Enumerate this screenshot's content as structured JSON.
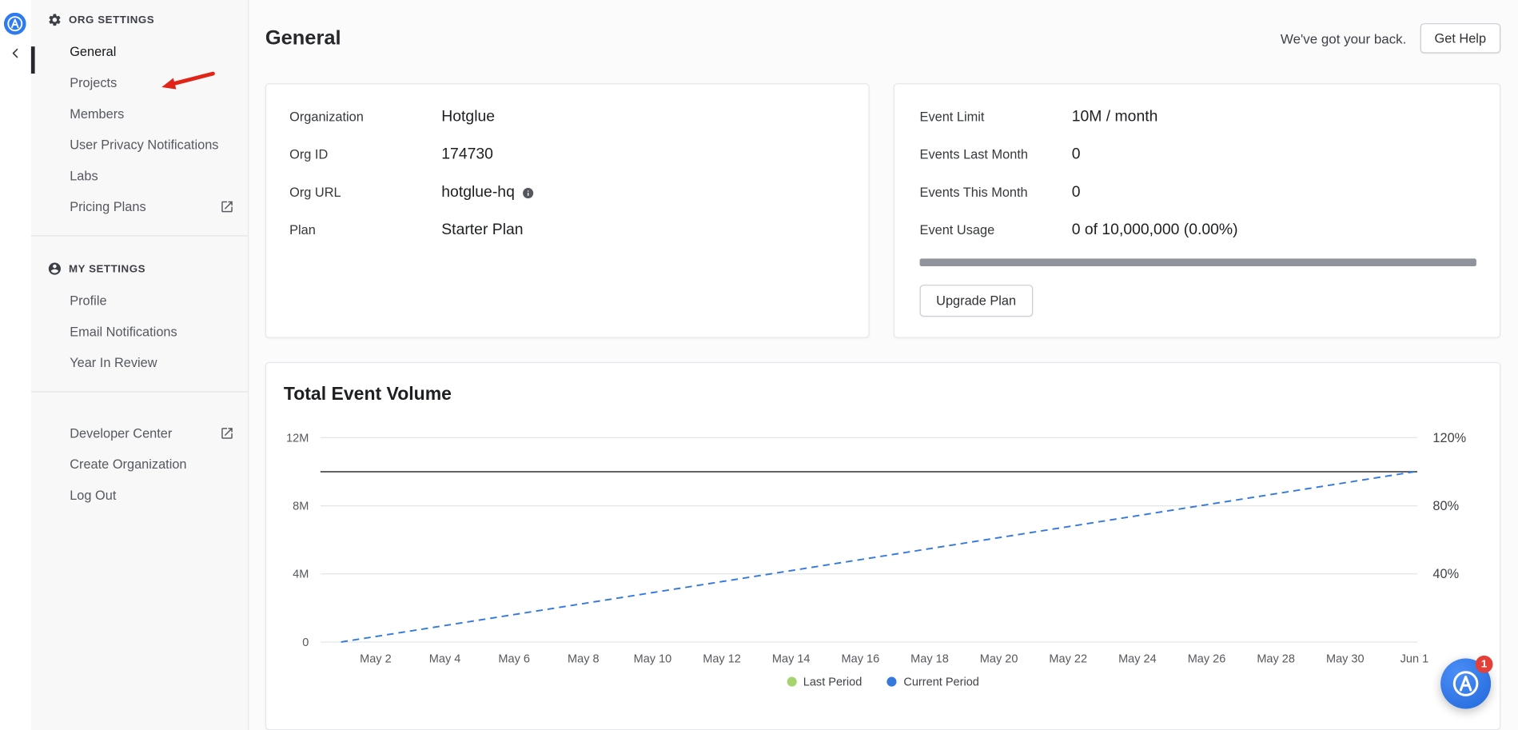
{
  "brand": {
    "accent": "#2e7bf0"
  },
  "sidebar": {
    "org_settings_header": "ORG SETTINGS",
    "org_items": [
      {
        "label": "General",
        "active": true
      },
      {
        "label": "Projects"
      },
      {
        "label": "Members"
      },
      {
        "label": "User Privacy Notifications"
      },
      {
        "label": "Labs"
      },
      {
        "label": "Pricing Plans",
        "external": true
      }
    ],
    "my_settings_header": "MY SETTINGS",
    "my_items": [
      {
        "label": "Profile"
      },
      {
        "label": "Email Notifications"
      },
      {
        "label": "Year In Review"
      }
    ],
    "footer_items": [
      {
        "label": "Developer Center",
        "external": true
      },
      {
        "label": "Create Organization"
      },
      {
        "label": "Log Out"
      }
    ]
  },
  "annotation": {
    "color": "#e02417",
    "points_to": "Projects"
  },
  "header": {
    "support_text": "We've got your back.",
    "get_help_label": "Get Help"
  },
  "page_title": "General",
  "org_card": {
    "rows": [
      {
        "label": "Organization",
        "value": "Hotglue"
      },
      {
        "label": "Org ID",
        "value": "174730"
      },
      {
        "label": "Org URL",
        "value": "hotglue-hq",
        "info_icon": true
      },
      {
        "label": "Plan",
        "value": "Starter Plan"
      }
    ]
  },
  "usage_card": {
    "rows": [
      {
        "label": "Event Limit",
        "value": "10M / month"
      },
      {
        "label": "Events Last Month",
        "value": "0"
      },
      {
        "label": "Events This Month",
        "value": "0"
      },
      {
        "label": "Event Usage",
        "value": "0 of 10,000,000 (0.00%)"
      }
    ],
    "progress_percent": 0,
    "upgrade_button_label": "Upgrade Plan"
  },
  "chart_data": {
    "type": "line",
    "title": "Total Event Volume",
    "x_ticks": [
      {
        "day": 2,
        "label": "May 2"
      },
      {
        "day": 4,
        "label": "May 4"
      },
      {
        "day": 6,
        "label": "May 6"
      },
      {
        "day": 8,
        "label": "May 8"
      },
      {
        "day": 10,
        "label": "May 10"
      },
      {
        "day": 12,
        "label": "May 12"
      },
      {
        "day": 14,
        "label": "May 14"
      },
      {
        "day": 16,
        "label": "May 16"
      },
      {
        "day": 18,
        "label": "May 18"
      },
      {
        "day": 20,
        "label": "May 20"
      },
      {
        "day": 22,
        "label": "May 22"
      },
      {
        "day": 24,
        "label": "May 24"
      },
      {
        "day": 26,
        "label": "May 26"
      },
      {
        "day": 28,
        "label": "May 28"
      },
      {
        "day": 30,
        "label": "May 30"
      },
      {
        "day": 32,
        "label": "Jun 1"
      }
    ],
    "ylim": [
      0,
      12000000
    ],
    "y_left_ticks": [
      {
        "value": 0,
        "label": "0"
      },
      {
        "value": 4000000,
        "label": "4M"
      },
      {
        "value": 8000000,
        "label": "8M"
      },
      {
        "value": 12000000,
        "label": "12M"
      }
    ],
    "y_right_ticks": [
      {
        "value": 4000000,
        "label": "40%"
      },
      {
        "value": 8000000,
        "label": "80%"
      },
      {
        "value": 12000000,
        "label": "120%"
      }
    ],
    "limit_line": {
      "value": 10000000,
      "color": "#4a4d52"
    },
    "series": [
      {
        "name": "Last Period",
        "color": "#a5d46f",
        "dashed": false,
        "points": []
      },
      {
        "name": "Current Period",
        "color": "#3579dd",
        "dashed": true,
        "points": [
          [
            1,
            0
          ],
          [
            32,
            10000000
          ]
        ]
      }
    ],
    "legend_position": "bottom",
    "grid": "horizontal"
  },
  "chat_widget": {
    "unread_badge": "1"
  }
}
